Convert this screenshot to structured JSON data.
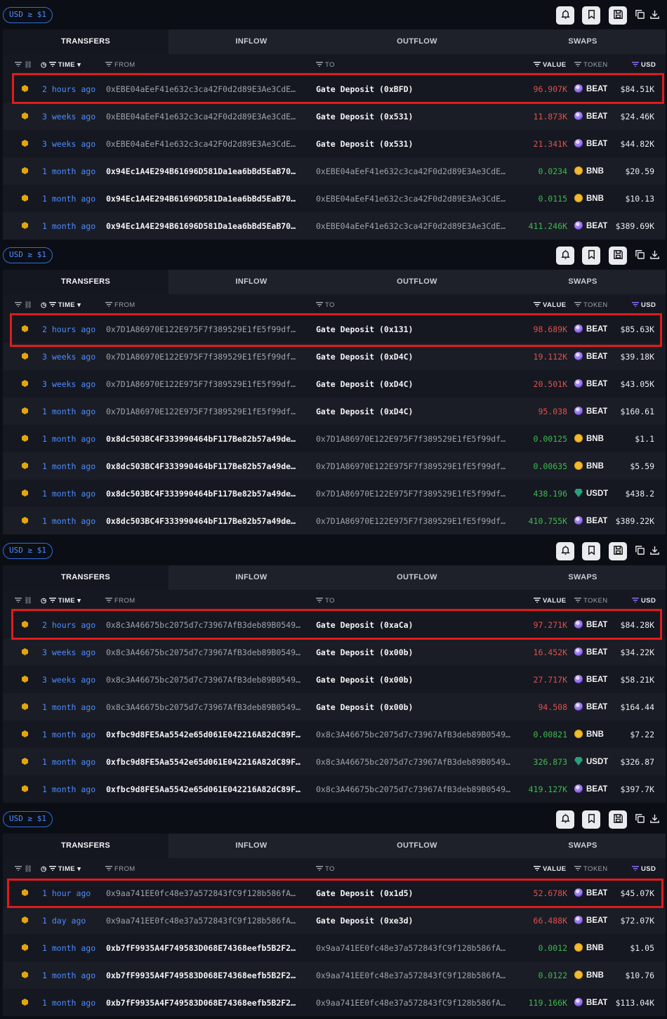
{
  "filter_pill": "USD ≥ $1",
  "tabs": [
    "TRANSFERS",
    "INFLOW",
    "OUTFLOW",
    "SWAPS"
  ],
  "columns": {
    "time": "TIME",
    "from": "FROM",
    "to": "TO",
    "value": "VALUE",
    "token": "TOKEN",
    "usd": "USD"
  },
  "icons": [
    "chain-link-icon",
    "clock-icon",
    "filter-icon",
    "sort-down-icon",
    "alert-icon",
    "bookmark-icon",
    "save-icon",
    "copy-icon",
    "download-icon"
  ],
  "colors": {
    "time": "#4d8cff",
    "outflow": "#e0504f",
    "inflow": "#3fb950",
    "highlight": "#e01b1b",
    "filter_pill": "#2f6fe0"
  },
  "panels": [
    {
      "rows": [
        {
          "time": "2 hours ago",
          "from": "0xEBE04aEeF41e632c3ca42F0d2d89E3Ae3CdE…",
          "from_strong": false,
          "to": "Gate Deposit (0xBFD)",
          "to_entity": true,
          "value": "96.907K",
          "dir": "out",
          "token": "BEAT",
          "usd": "$84.51K"
        },
        {
          "time": "3 weeks ago",
          "from": "0xEBE04aEeF41e632c3ca42F0d2d89E3Ae3CdE…",
          "from_strong": false,
          "to": "Gate Deposit (0x531)",
          "to_entity": true,
          "value": "11.873K",
          "dir": "out",
          "token": "BEAT",
          "usd": "$24.46K"
        },
        {
          "time": "3 weeks ago",
          "from": "0xEBE04aEeF41e632c3ca42F0d2d89E3Ae3CdE…",
          "from_strong": false,
          "to": "Gate Deposit (0x531)",
          "to_entity": true,
          "value": "21.341K",
          "dir": "out",
          "token": "BEAT",
          "usd": "$44.82K"
        },
        {
          "time": "1 month ago",
          "from": "0x94Ec1A4E294B61696D581Da1ea6bBd5EaB70…",
          "from_strong": true,
          "to": "0xEBE04aEeF41e632c3ca42F0d2d89E3Ae3CdE…",
          "to_entity": false,
          "value": "0.0234",
          "dir": "in",
          "token": "BNB",
          "usd": "$20.59"
        },
        {
          "time": "1 month ago",
          "from": "0x94Ec1A4E294B61696D581Da1ea6bBd5EaB70…",
          "from_strong": true,
          "to": "0xEBE04aEeF41e632c3ca42F0d2d89E3Ae3CdE…",
          "to_entity": false,
          "value": "0.0115",
          "dir": "in",
          "token": "BNB",
          "usd": "$10.13"
        },
        {
          "time": "1 month ago",
          "from": "0x94Ec1A4E294B61696D581Da1ea6bBd5EaB70…",
          "from_strong": true,
          "to": "0xEBE04aEeF41e632c3ca42F0d2d89E3Ae3CdE…",
          "to_entity": false,
          "value": "411.246K",
          "dir": "in",
          "token": "BEAT",
          "usd": "$389.69K"
        }
      ]
    },
    {
      "rows": [
        {
          "time": "2 hours ago",
          "from": "0x7D1A86970E122E975F7f389529E1fE5f99df…",
          "from_strong": false,
          "to": "Gate Deposit (0x131)",
          "to_entity": true,
          "value": "98.689K",
          "dir": "out",
          "token": "BEAT",
          "usd": "$85.63K"
        },
        {
          "time": "3 weeks ago",
          "from": "0x7D1A86970E122E975F7f389529E1fE5f99df…",
          "from_strong": false,
          "to": "Gate Deposit (0xD4C)",
          "to_entity": true,
          "value": "19.112K",
          "dir": "out",
          "token": "BEAT",
          "usd": "$39.18K"
        },
        {
          "time": "3 weeks ago",
          "from": "0x7D1A86970E122E975F7f389529E1fE5f99df…",
          "from_strong": false,
          "to": "Gate Deposit (0xD4C)",
          "to_entity": true,
          "value": "20.501K",
          "dir": "out",
          "token": "BEAT",
          "usd": "$43.05K"
        },
        {
          "time": "1 month ago",
          "from": "0x7D1A86970E122E975F7f389529E1fE5f99df…",
          "from_strong": false,
          "to": "Gate Deposit (0xD4C)",
          "to_entity": true,
          "value": "95.038",
          "dir": "out",
          "token": "BEAT",
          "usd": "$160.61"
        },
        {
          "time": "1 month ago",
          "from": "0x8dc503BC4F333990464bF117Be82b57a49de…",
          "from_strong": true,
          "to": "0x7D1A86970E122E975F7f389529E1fE5f99df…",
          "to_entity": false,
          "value": "0.00125",
          "dir": "in",
          "token": "BNB",
          "usd": "$1.1"
        },
        {
          "time": "1 month ago",
          "from": "0x8dc503BC4F333990464bF117Be82b57a49de…",
          "from_strong": true,
          "to": "0x7D1A86970E122E975F7f389529E1fE5f99df…",
          "to_entity": false,
          "value": "0.00635",
          "dir": "in",
          "token": "BNB",
          "usd": "$5.59"
        },
        {
          "time": "1 month ago",
          "from": "0x8dc503BC4F333990464bF117Be82b57a49de…",
          "from_strong": true,
          "to": "0x7D1A86970E122E975F7f389529E1fE5f99df…",
          "to_entity": false,
          "value": "438.196",
          "dir": "in",
          "token": "USDT",
          "usd": "$438.2"
        },
        {
          "time": "1 month ago",
          "from": "0x8dc503BC4F333990464bF117Be82b57a49de…",
          "from_strong": true,
          "to": "0x7D1A86970E122E975F7f389529E1fE5f99df…",
          "to_entity": false,
          "value": "410.755K",
          "dir": "in",
          "token": "BEAT",
          "usd": "$389.22K"
        }
      ]
    },
    {
      "rows": [
        {
          "time": "2 hours ago",
          "from": "0x8c3A46675bc2075d7c73967AfB3deb89B0549…",
          "from_strong": false,
          "to": "Gate Deposit (0xaCa)",
          "to_entity": true,
          "value": "97.271K",
          "dir": "out",
          "token": "BEAT",
          "usd": "$84.28K"
        },
        {
          "time": "3 weeks ago",
          "from": "0x8c3A46675bc2075d7c73967AfB3deb89B0549…",
          "from_strong": false,
          "to": "Gate Deposit (0x00b)",
          "to_entity": true,
          "value": "16.452K",
          "dir": "out",
          "token": "BEAT",
          "usd": "$34.22K"
        },
        {
          "time": "3 weeks ago",
          "from": "0x8c3A46675bc2075d7c73967AfB3deb89B0549…",
          "from_strong": false,
          "to": "Gate Deposit (0x00b)",
          "to_entity": true,
          "value": "27.717K",
          "dir": "out",
          "token": "BEAT",
          "usd": "$58.21K"
        },
        {
          "time": "1 month ago",
          "from": "0x8c3A46675bc2075d7c73967AfB3deb89B0549…",
          "from_strong": false,
          "to": "Gate Deposit (0x00b)",
          "to_entity": true,
          "value": "94.508",
          "dir": "out",
          "token": "BEAT",
          "usd": "$164.44"
        },
        {
          "time": "1 month ago",
          "from": "0xfbc9d8FE5Aa5542e65d061E042216A82dC89F…",
          "from_strong": true,
          "to": "0x8c3A46675bc2075d7c73967AfB3deb89B0549…",
          "to_entity": false,
          "value": "0.00821",
          "dir": "in",
          "token": "BNB",
          "usd": "$7.22"
        },
        {
          "time": "1 month ago",
          "from": "0xfbc9d8FE5Aa5542e65d061E042216A82dC89F…",
          "from_strong": true,
          "to": "0x8c3A46675bc2075d7c73967AfB3deb89B0549…",
          "to_entity": false,
          "value": "326.873",
          "dir": "in",
          "token": "USDT",
          "usd": "$326.87"
        },
        {
          "time": "1 month ago",
          "from": "0xfbc9d8FE5Aa5542e65d061E042216A82dC89F…",
          "from_strong": true,
          "to": "0x8c3A46675bc2075d7c73967AfB3deb89B0549…",
          "to_entity": false,
          "value": "419.127K",
          "dir": "in",
          "token": "BEAT",
          "usd": "$397.7K"
        }
      ]
    },
    {
      "rows": [
        {
          "time": "1 hour ago",
          "from": "0x9aa741EE0fc48e37a572843fC9f128b586fA…",
          "from_strong": false,
          "to": "Gate Deposit (0x1d5)",
          "to_entity": true,
          "value": "52.678K",
          "dir": "out",
          "token": "BEAT",
          "usd": "$45.07K"
        },
        {
          "time": "1 day ago",
          "from": "0x9aa741EE0fc48e37a572843fC9f128b586fA…",
          "from_strong": false,
          "to": "Gate Deposit (0xe3d)",
          "to_entity": true,
          "value": "66.488K",
          "dir": "out",
          "token": "BEAT",
          "usd": "$72.07K"
        },
        {
          "time": "1 month ago",
          "from": "0xb7fF9935A4F749583D068E74368eefb5B2F2…",
          "from_strong": true,
          "to": "0x9aa741EE0fc48e37a572843fC9f128b586fA…",
          "to_entity": false,
          "value": "0.0012",
          "dir": "in",
          "token": "BNB",
          "usd": "$1.05"
        },
        {
          "time": "1 month ago",
          "from": "0xb7fF9935A4F749583D068E74368eefb5B2F2…",
          "from_strong": true,
          "to": "0x9aa741EE0fc48e37a572843fC9f128b586fA…",
          "to_entity": false,
          "value": "0.0122",
          "dir": "in",
          "token": "BNB",
          "usd": "$10.76"
        },
        {
          "time": "1 month ago",
          "from": "0xb7fF9935A4F749583D068E74368eefb5B2F2…",
          "from_strong": true,
          "to": "0x9aa741EE0fc48e37a572843fC9f128b586fA…",
          "to_entity": false,
          "value": "119.166K",
          "dir": "in",
          "token": "BEAT",
          "usd": "$113.04K"
        }
      ]
    }
  ]
}
